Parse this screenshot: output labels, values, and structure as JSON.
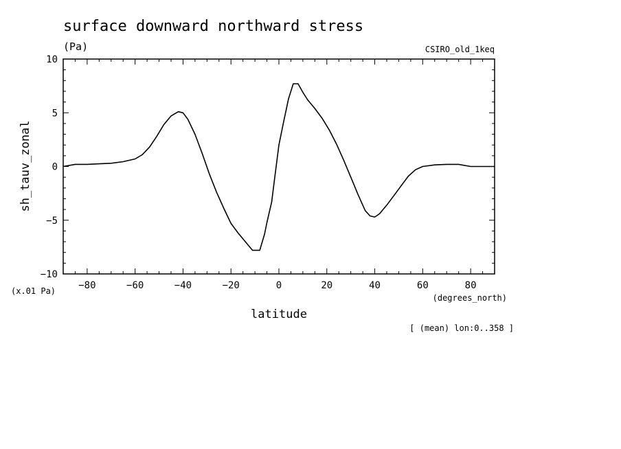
{
  "chart_data": {
    "type": "line",
    "title": "surface downward northward stress",
    "units": "(Pa)",
    "model_label": "CSIRO_old_1keq",
    "ylabel": "sh_tauv_zonal",
    "xlabel": "latitude",
    "x_units": "(degrees_north)",
    "y_scale_note": "(x.01 Pa)",
    "footnote": "[ (mean) lon:0..358 ]",
    "xlim": [
      -90,
      90
    ],
    "ylim": [
      -10,
      10
    ],
    "x_ticks": [
      -80,
      -60,
      -40,
      -20,
      0,
      20,
      40,
      60,
      80
    ],
    "y_ticks": [
      -10,
      -5,
      0,
      5,
      10
    ],
    "x_tick_labels": [
      "−80",
      "−60",
      "−40",
      "−20",
      "0",
      "20",
      "40",
      "60",
      "80"
    ],
    "y_tick_labels": [
      "−10",
      "−5",
      "0",
      "5",
      "10"
    ],
    "x_minor_step": 5,
    "y_minor_step": 1,
    "grid": false,
    "series": [
      {
        "x": [
          -90,
          -85,
          -80,
          -75,
          -70,
          -65,
          -60,
          -57,
          -54,
          -51,
          -48,
          -45,
          -42,
          -40,
          -38,
          -35,
          -32,
          -29,
          -26,
          -23,
          -20,
          -17,
          -14,
          -11,
          -8,
          -6,
          -5,
          -3,
          -2,
          0,
          2,
          4,
          6,
          8,
          10,
          12,
          15,
          18,
          21,
          24,
          27,
          30,
          33,
          36,
          38,
          40,
          42,
          45,
          48,
          51,
          54,
          57,
          60,
          65,
          70,
          75,
          80,
          85,
          90
        ],
        "y": [
          0.0,
          0.2,
          0.2,
          0.25,
          0.3,
          0.45,
          0.7,
          1.1,
          1.8,
          2.8,
          3.9,
          4.7,
          5.1,
          5.0,
          4.4,
          3.0,
          1.2,
          -0.7,
          -2.4,
          -3.9,
          -5.3,
          -6.2,
          -7.0,
          -7.8,
          -7.8,
          -6.3,
          -5.2,
          -3.3,
          -1.5,
          2.0,
          4.2,
          6.3,
          7.7,
          7.7,
          6.9,
          6.2,
          5.4,
          4.5,
          3.4,
          2.1,
          0.6,
          -1.0,
          -2.6,
          -4.1,
          -4.6,
          -4.7,
          -4.4,
          -3.6,
          -2.7,
          -1.8,
          -0.9,
          -0.3,
          0.0,
          0.15,
          0.2,
          0.2,
          0.0,
          0.0,
          0.0
        ]
      }
    ]
  }
}
